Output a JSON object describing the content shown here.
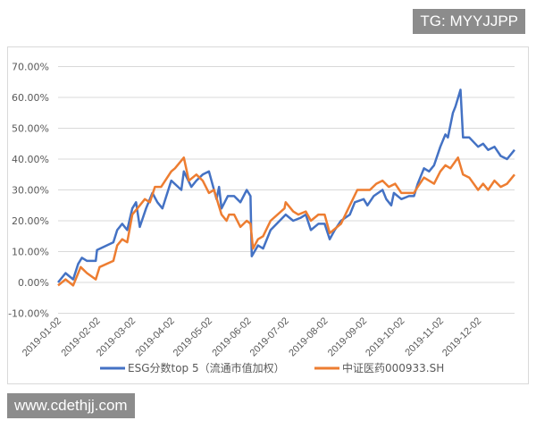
{
  "watermarks": {
    "top": "TG: MYYJJPP",
    "bottom": "www.cdethjj.com"
  },
  "chart_data": {
    "type": "line",
    "title": "",
    "xlabel": "",
    "ylabel": "",
    "ylim": [
      -10,
      70
    ],
    "yticks": [
      "-10.00%",
      "0.00%",
      "10.00%",
      "20.00%",
      "30.00%",
      "40.00%",
      "50.00%",
      "60.00%",
      "70.00%"
    ],
    "xticks": [
      "2019-01-02",
      "2019-02-02",
      "2019-03-02",
      "2019-04-02",
      "2019-05-02",
      "2019-06-02",
      "2019-07-02",
      "2019-08-02",
      "2019-09-02",
      "2019-10-02",
      "2019-11-02",
      "2019-12-02"
    ],
    "xlim": [
      "2019-01-02",
      "2019-12-31"
    ],
    "grid": true,
    "legend": "bottom",
    "series": [
      {
        "name": "ESG分数top 5（流通市值加权）",
        "color": "#4472C4",
        "points": [
          [
            "2019-01-02",
            0
          ],
          [
            "2019-01-08",
            3
          ],
          [
            "2019-01-14",
            1
          ],
          [
            "2019-01-18",
            6
          ],
          [
            "2019-01-21",
            8
          ],
          [
            "2019-01-25",
            7
          ],
          [
            "2019-02-01",
            7
          ],
          [
            "2019-02-02",
            10.5
          ],
          [
            "2019-02-15",
            13
          ],
          [
            "2019-02-18",
            17
          ],
          [
            "2019-02-22",
            19
          ],
          [
            "2019-02-26",
            17
          ],
          [
            "2019-03-02",
            24
          ],
          [
            "2019-03-05",
            26
          ],
          [
            "2019-03-08",
            18
          ],
          [
            "2019-03-13",
            24
          ],
          [
            "2019-03-18",
            29
          ],
          [
            "2019-03-22",
            26
          ],
          [
            "2019-03-26",
            24
          ],
          [
            "2019-04-02",
            33
          ],
          [
            "2019-04-10",
            30
          ],
          [
            "2019-04-12",
            36
          ],
          [
            "2019-04-18",
            31
          ],
          [
            "2019-04-22",
            33
          ],
          [
            "2019-04-27",
            35
          ],
          [
            "2019-05-02",
            36
          ],
          [
            "2019-05-08",
            27
          ],
          [
            "2019-05-10",
            31
          ],
          [
            "2019-05-12",
            24
          ],
          [
            "2019-05-17",
            28
          ],
          [
            "2019-05-22",
            28
          ],
          [
            "2019-05-27",
            26
          ],
          [
            "2019-06-01",
            30
          ],
          [
            "2019-06-04",
            28
          ],
          [
            "2019-06-05",
            8.5
          ],
          [
            "2019-06-10",
            12
          ],
          [
            "2019-06-14",
            11
          ],
          [
            "2019-06-20",
            17
          ],
          [
            "2019-07-02",
            22
          ],
          [
            "2019-07-08",
            20
          ],
          [
            "2019-07-14",
            21
          ],
          [
            "2019-07-18",
            22
          ],
          [
            "2019-07-22",
            17
          ],
          [
            "2019-07-28",
            19
          ],
          [
            "2019-08-02",
            19
          ],
          [
            "2019-08-06",
            14
          ],
          [
            "2019-08-10",
            17
          ],
          [
            "2019-08-15",
            20
          ],
          [
            "2019-08-22",
            22
          ],
          [
            "2019-08-26",
            26
          ],
          [
            "2019-09-02",
            27
          ],
          [
            "2019-09-05",
            25
          ],
          [
            "2019-09-10",
            28
          ],
          [
            "2019-09-17",
            30
          ],
          [
            "2019-09-20",
            27
          ],
          [
            "2019-09-24",
            25
          ],
          [
            "2019-09-26",
            29
          ],
          [
            "2019-10-02",
            27
          ],
          [
            "2019-10-08",
            28
          ],
          [
            "2019-10-12",
            28
          ],
          [
            "2019-10-15",
            32
          ],
          [
            "2019-10-20",
            37
          ],
          [
            "2019-10-24",
            36
          ],
          [
            "2019-10-28",
            38
          ],
          [
            "2019-11-02",
            44
          ],
          [
            "2019-11-06",
            48
          ],
          [
            "2019-11-08",
            47
          ],
          [
            "2019-11-12",
            55
          ],
          [
            "2019-11-14",
            57
          ],
          [
            "2019-11-18",
            62.5
          ],
          [
            "2019-11-20",
            47
          ],
          [
            "2019-11-25",
            47
          ],
          [
            "2019-12-02",
            44
          ],
          [
            "2019-12-06",
            45
          ],
          [
            "2019-12-10",
            43
          ],
          [
            "2019-12-15",
            44
          ],
          [
            "2019-12-20",
            41
          ],
          [
            "2019-12-25",
            40
          ],
          [
            "2019-12-31",
            43
          ]
        ]
      },
      {
        "name": "中证医药000933.SH",
        "color": "#ED7D31",
        "points": [
          [
            "2019-01-02",
            -1
          ],
          [
            "2019-01-08",
            1
          ],
          [
            "2019-01-14",
            -1
          ],
          [
            "2019-01-20",
            5
          ],
          [
            "2019-01-25",
            3
          ],
          [
            "2019-02-01",
            1
          ],
          [
            "2019-02-04",
            5
          ],
          [
            "2019-02-15",
            7
          ],
          [
            "2019-02-18",
            12
          ],
          [
            "2019-02-22",
            14
          ],
          [
            "2019-02-26",
            13
          ],
          [
            "2019-03-02",
            22
          ],
          [
            "2019-03-08",
            25
          ],
          [
            "2019-03-12",
            27
          ],
          [
            "2019-03-16",
            26
          ],
          [
            "2019-03-20",
            31
          ],
          [
            "2019-03-25",
            31
          ],
          [
            "2019-04-02",
            36
          ],
          [
            "2019-04-05",
            37
          ],
          [
            "2019-04-12",
            40.5
          ],
          [
            "2019-04-16",
            33
          ],
          [
            "2019-04-22",
            35
          ],
          [
            "2019-04-27",
            33
          ],
          [
            "2019-05-02",
            29
          ],
          [
            "2019-05-06",
            30
          ],
          [
            "2019-05-12",
            22
          ],
          [
            "2019-05-16",
            20
          ],
          [
            "2019-05-18",
            22
          ],
          [
            "2019-05-22",
            22
          ],
          [
            "2019-05-27",
            18
          ],
          [
            "2019-06-01",
            20
          ],
          [
            "2019-06-04",
            19
          ],
          [
            "2019-06-06",
            11
          ],
          [
            "2019-06-10",
            14
          ],
          [
            "2019-06-14",
            15
          ],
          [
            "2019-06-20",
            20
          ],
          [
            "2019-07-01",
            24
          ],
          [
            "2019-07-02",
            26
          ],
          [
            "2019-07-08",
            23
          ],
          [
            "2019-07-12",
            22
          ],
          [
            "2019-07-18",
            23
          ],
          [
            "2019-07-22",
            20
          ],
          [
            "2019-07-28",
            22
          ],
          [
            "2019-08-02",
            22
          ],
          [
            "2019-08-06",
            16
          ],
          [
            "2019-08-15",
            19
          ],
          [
            "2019-08-22",
            25
          ],
          [
            "2019-08-28",
            30
          ],
          [
            "2019-09-02",
            30
          ],
          [
            "2019-09-07",
            30
          ],
          [
            "2019-09-12",
            32
          ],
          [
            "2019-09-17",
            33
          ],
          [
            "2019-09-22",
            31
          ],
          [
            "2019-09-27",
            32
          ],
          [
            "2019-10-02",
            29
          ],
          [
            "2019-10-12",
            29
          ],
          [
            "2019-10-15",
            31
          ],
          [
            "2019-10-20",
            34
          ],
          [
            "2019-10-28",
            32
          ],
          [
            "2019-11-02",
            36
          ],
          [
            "2019-11-06",
            38
          ],
          [
            "2019-11-10",
            37
          ],
          [
            "2019-11-16",
            40.5
          ],
          [
            "2019-11-20",
            35
          ],
          [
            "2019-11-25",
            34
          ],
          [
            "2019-12-02",
            30
          ],
          [
            "2019-12-06",
            32
          ],
          [
            "2019-12-10",
            30
          ],
          [
            "2019-12-15",
            33
          ],
          [
            "2019-12-20",
            31
          ],
          [
            "2019-12-25",
            32
          ],
          [
            "2019-12-31",
            35
          ]
        ]
      }
    ]
  }
}
